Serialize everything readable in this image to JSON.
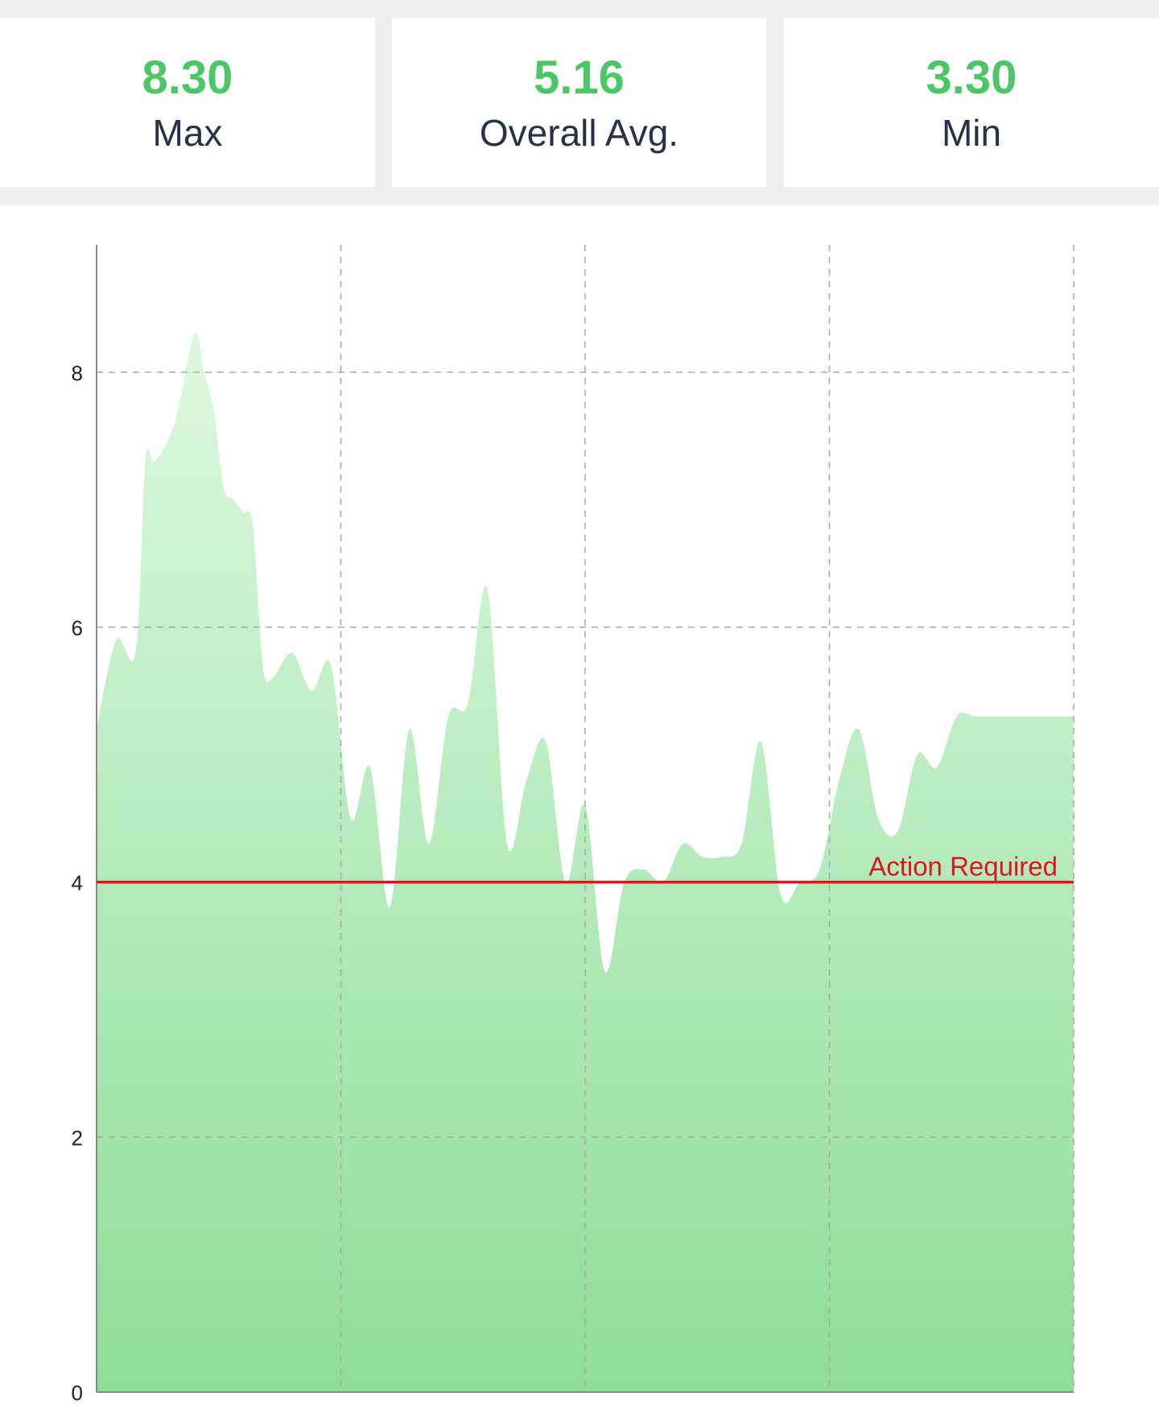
{
  "stats": {
    "max": {
      "value": "8.30",
      "label": "Max"
    },
    "avg": {
      "value": "5.16",
      "label": "Overall Avg."
    },
    "min": {
      "value": "3.30",
      "label": "Min"
    }
  },
  "colors": {
    "accent": "#4cc765",
    "label": "#27324a",
    "threshold": "#e0151b",
    "fill_top": "#dcf9df",
    "fill_bottom": "#8fdd98",
    "grid": "#a8a8a8"
  },
  "chart_data": {
    "type": "area",
    "title": "",
    "xlabel": "",
    "ylabel": "",
    "ylim": [
      0,
      9
    ],
    "yticks": [
      0,
      2,
      4,
      6,
      8
    ],
    "x_range": [
      0,
      100
    ],
    "x_gridlines": [
      0,
      25,
      50,
      75,
      100
    ],
    "grid": true,
    "threshold": {
      "value": 4,
      "label": "Action Required"
    },
    "series": [
      {
        "x": [
          0,
          2,
          4,
          5,
          6,
          8,
          10,
          11,
          12,
          13,
          14,
          15,
          16,
          17,
          18,
          20,
          22,
          24,
          26,
          28,
          30,
          32,
          34,
          36,
          38,
          40,
          42,
          44,
          46,
          48,
          50,
          52,
          54,
          56,
          58,
          60,
          62,
          64,
          66,
          68,
          70,
          72,
          74,
          76,
          78,
          80,
          82,
          84,
          86,
          88,
          90,
          92,
          94,
          96,
          98,
          100
        ],
        "values": [
          5.2,
          5.9,
          5.8,
          7.3,
          7.3,
          7.6,
          8.3,
          8.0,
          7.7,
          7.1,
          7.0,
          6.9,
          6.8,
          5.7,
          5.6,
          5.8,
          5.5,
          5.7,
          4.5,
          4.9,
          3.8,
          5.2,
          4.3,
          5.3,
          5.4,
          6.3,
          4.3,
          4.8,
          5.1,
          4.0,
          4.6,
          3.3,
          4.0,
          4.1,
          4.0,
          4.3,
          4.2,
          4.2,
          4.3,
          5.1,
          3.9,
          4.0,
          4.1,
          4.8,
          5.2,
          4.5,
          4.4,
          5.0,
          4.9,
          5.3,
          5.3,
          5.3,
          5.3,
          5.3,
          5.3,
          5.3
        ]
      }
    ]
  }
}
